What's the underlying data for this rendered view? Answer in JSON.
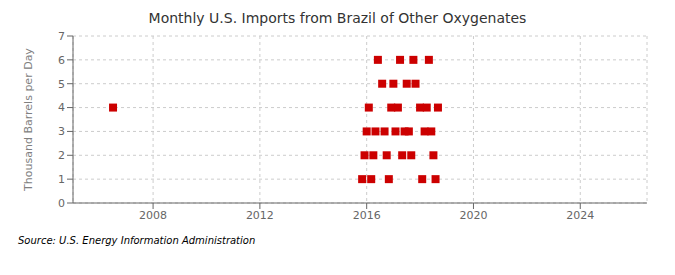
{
  "chart_data": {
    "type": "scatter",
    "title": "Monthly U.S. Imports from Brazil of Other Oxygenates",
    "y_label": "Thousand Barrels per Day",
    "source": "Source: U.S. Energy Information Administration",
    "x": [
      2006.5,
      2015.83,
      2015.92,
      2016.0,
      2016.08,
      2016.17,
      2016.25,
      2016.33,
      2016.42,
      2016.58,
      2016.67,
      2016.75,
      2016.83,
      2016.92,
      2017.0,
      2017.08,
      2017.17,
      2017.25,
      2017.33,
      2017.42,
      2017.5,
      2017.58,
      2017.67,
      2017.75,
      2017.83,
      2018.0,
      2018.08,
      2018.17,
      2018.25,
      2018.33,
      2018.42,
      2018.5,
      2018.58,
      2018.67
    ],
    "values": [
      4.0,
      1.0,
      2.0,
      3.0,
      4.0,
      1.0,
      2.0,
      3.0,
      6.0,
      5.0,
      3.0,
      2.0,
      1.0,
      4.0,
      5.0,
      3.0,
      4.0,
      6.0,
      2.0,
      3.0,
      5.0,
      3.0,
      2.0,
      6.0,
      5.0,
      4.0,
      1.0,
      3.0,
      4.0,
      6.0,
      3.0,
      2.0,
      1.0,
      4.0
    ],
    "color": "#cc0000",
    "marker": "square",
    "xlim": [
      2005.0,
      2026.5
    ],
    "xticks": [
      2008,
      2012,
      2016,
      2020,
      2024
    ],
    "ylim": [
      0,
      7
    ],
    "yticks": [
      0,
      1,
      2,
      3,
      4,
      5,
      6,
      7
    ],
    "grid": true
  }
}
